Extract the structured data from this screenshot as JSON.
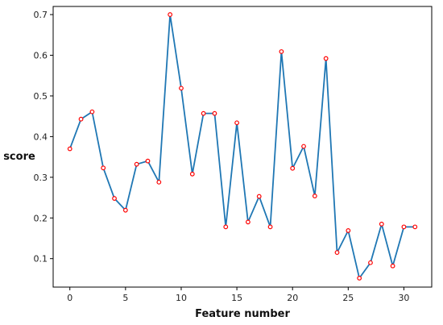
{
  "chart_data": {
    "type": "line",
    "title": "",
    "xlabel": "Feature number",
    "ylabel": "score",
    "xlim": [
      -1.5,
      32.5
    ],
    "ylim": [
      0.03,
      0.72
    ],
    "xticks": [
      0,
      5,
      10,
      15,
      20,
      25,
      30
    ],
    "yticks": [
      0.1,
      0.2,
      0.3,
      0.4,
      0.5,
      0.6,
      0.7
    ],
    "grid": false,
    "line_color": "#1f77b4",
    "marker_color": "#ff0000",
    "series": [
      {
        "x": [
          0,
          1,
          2,
          3,
          4,
          5,
          6,
          7,
          8,
          9,
          10,
          11,
          12,
          13,
          14,
          15,
          16,
          17,
          18,
          19,
          20,
          21,
          22,
          23,
          24,
          25,
          26,
          27,
          28,
          29,
          30,
          31
        ],
        "values": [
          0.37,
          0.443,
          0.461,
          0.323,
          0.248,
          0.219,
          0.332,
          0.34,
          0.288,
          0.7,
          0.519,
          0.308,
          0.457,
          0.457,
          0.178,
          0.434,
          0.19,
          0.253,
          0.178,
          0.609,
          0.322,
          0.376,
          0.254,
          0.592,
          0.115,
          0.169,
          0.052,
          0.09,
          0.185,
          0.082,
          0.178,
          0.178
        ]
      }
    ]
  }
}
